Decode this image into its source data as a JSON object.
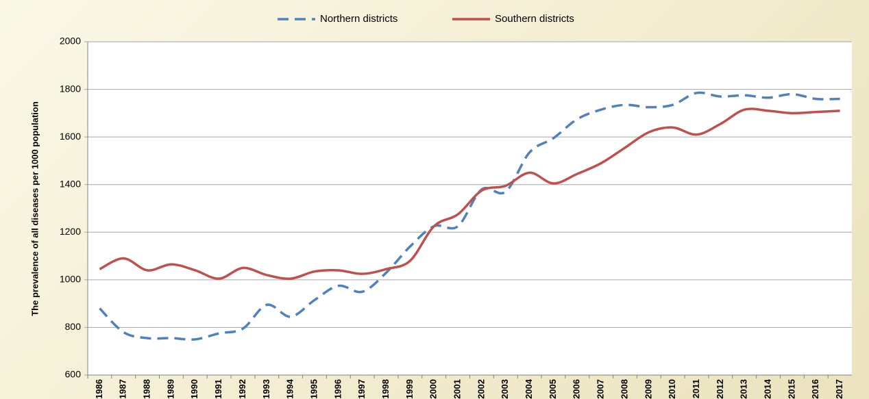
{
  "chart_data": {
    "type": "line",
    "y_label": "The prevalence of all diseases per 1000 population",
    "categories": [
      "1986",
      "1987",
      "1988",
      "1989",
      "1990",
      "1991",
      "1992",
      "1993",
      "1994",
      "1995",
      "1996",
      "1997",
      "1998",
      "1999",
      "2000",
      "2001",
      "2002",
      "2003",
      "2004",
      "2005",
      "2006",
      "2007",
      "2008",
      "2009",
      "2010",
      "2011",
      "2012",
      "2013",
      "2014",
      "2015",
      "2016",
      "2017"
    ],
    "series": [
      {
        "name": "Northern districts",
        "color": "#4f81bd",
        "dashed": true,
        "values": [
          880,
          780,
          755,
          755,
          750,
          775,
          795,
          895,
          845,
          915,
          975,
          950,
          1030,
          1140,
          1225,
          1225,
          1380,
          1370,
          1535,
          1595,
          1675,
          1715,
          1735,
          1725,
          1735,
          1785,
          1770,
          1775,
          1765,
          1780,
          1760,
          1760
        ]
      },
      {
        "name": "Southern districts",
        "color": "#c0504d",
        "dashed": false,
        "values": [
          1045,
          1090,
          1040,
          1065,
          1040,
          1005,
          1050,
          1020,
          1005,
          1035,
          1040,
          1025,
          1045,
          1080,
          1225,
          1275,
          1375,
          1395,
          1450,
          1405,
          1445,
          1490,
          1555,
          1620,
          1640,
          1610,
          1655,
          1715,
          1710,
          1700,
          1705,
          1710
        ]
      }
    ],
    "ylim": [
      600,
      2000
    ],
    "yticks": [
      600,
      800,
      1000,
      1200,
      1400,
      1600,
      1800,
      2000
    ],
    "grid": true,
    "legend": "top"
  }
}
